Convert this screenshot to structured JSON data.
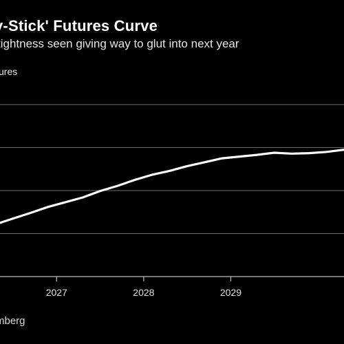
{
  "header": {
    "title": "y-Stick' Futures Curve",
    "subtitle": "tightness seen giving way to glut into next year",
    "unit": "ures"
  },
  "footer": {
    "source": "mberg"
  },
  "chart_data": {
    "type": "line",
    "title": "y-Stick' Futures Curve",
    "subtitle": "tightness seen giving way to glut into next year",
    "xlabel": "",
    "ylabel": "",
    "x_ticks": [
      2027,
      2028,
      2029
    ],
    "xlim": [
      2026.35,
      2030.3
    ],
    "ylim": [
      0,
      4
    ],
    "y_gridlines": [
      1,
      2,
      3,
      4
    ],
    "grid": true,
    "legend": "none",
    "series": [
      {
        "color": "#ffffff",
        "x": [
          2026.35,
          2026.5,
          2026.7,
          2026.9,
          2027.1,
          2027.3,
          2027.5,
          2027.7,
          2027.9,
          2028.1,
          2028.3,
          2028.5,
          2028.7,
          2028.9,
          2029.1,
          2029.3,
          2029.5,
          2029.7,
          2029.9,
          2030.1,
          2030.3
        ],
        "y": [
          1.25,
          1.35,
          1.48,
          1.62,
          1.73,
          1.84,
          1.99,
          2.11,
          2.25,
          2.37,
          2.46,
          2.57,
          2.66,
          2.75,
          2.79,
          2.83,
          2.88,
          2.86,
          2.87,
          2.9,
          2.95
        ]
      }
    ]
  }
}
